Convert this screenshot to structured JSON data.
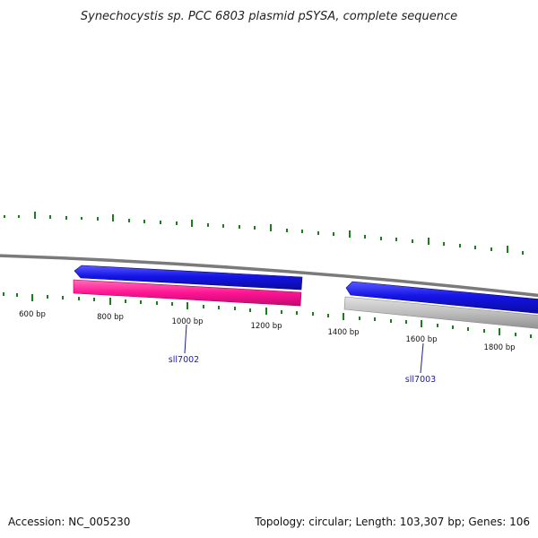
{
  "title": "Synechocystis sp. PCC 6803 plasmid pSYSA, complete sequence",
  "footer": {
    "accession": "Accession: NC_005230",
    "summary": "Topology: circular; Length: 103,307 bp; Genes: 106"
  },
  "scale_labels": [
    "600 bp",
    "800 bp",
    "1000 bp",
    "1200 bp",
    "1400 bp",
    "1600 bp",
    "1800 bp"
  ],
  "gene_labels": [
    "sll7002",
    "sll7003"
  ],
  "colors": {
    "forward_gene": "#1414e6",
    "reverse_gene_1": "#ff1493",
    "reverse_gene_2": "#bdbdbd",
    "backbone": "#7a7a7a",
    "ticks": "#1a7f1a",
    "gene_label": "#1a1aa6"
  }
}
